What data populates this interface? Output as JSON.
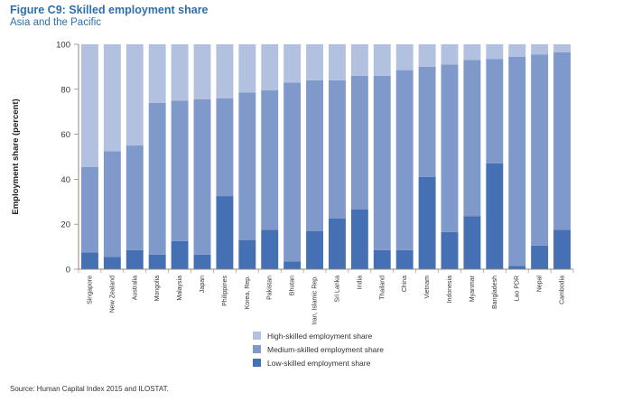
{
  "title": "Figure C9: Skilled employment share",
  "subtitle": "Asia and the Pacific",
  "source": "Source: Human Capital Index 2015 and ILOSTAT.",
  "colors": {
    "low": "#4570b3",
    "medium": "#7f99cb",
    "high": "#b3c1e0",
    "axis": "#8a8a8a"
  },
  "chart_data": {
    "type": "bar",
    "stacked": true,
    "title": "Figure C9: Skilled employment share",
    "subtitle": "Asia and the Pacific",
    "xlabel": "",
    "ylabel": "Employment share (percent)",
    "ylim": [
      0,
      100
    ],
    "yticks": [
      0,
      20,
      40,
      60,
      80,
      100
    ],
    "legend_position": "bottom-center",
    "categories": [
      "Singapore",
      "New Zealand",
      "Australia",
      "Mongolia",
      "Malaysia",
      "Japan",
      "Philippines",
      "Korea, Rep.",
      "Pakistan",
      "Bhutan",
      "Iran, Islamic Rep.",
      "Sri Lanka",
      "India",
      "Thailand",
      "China",
      "Vietnam",
      "Indonesia",
      "Myanmar",
      "Bangladesh",
      "Lao PDR",
      "Nepal",
      "Cambodia"
    ],
    "series": [
      {
        "name": "Low-skilled employment share",
        "values": [
          7.5,
          5.5,
          8.5,
          6.5,
          12.5,
          6.5,
          32.5,
          13,
          17.5,
          3.5,
          17,
          22.5,
          26.5,
          8.5,
          8.5,
          41,
          16.5,
          23.5,
          47,
          1.5,
          10.5,
          17.5
        ]
      },
      {
        "name": "Medium-skilled employment share",
        "values": [
          38,
          47,
          46.5,
          67.5,
          62.5,
          69,
          43.5,
          65.5,
          62,
          79.5,
          67,
          61.5,
          59.5,
          77.5,
          80,
          49,
          74.5,
          69.5,
          46.5,
          93,
          85,
          79
        ]
      },
      {
        "name": "High-skilled employment share",
        "values": [
          54.5,
          47.5,
          45,
          26,
          25,
          24.5,
          24,
          21.5,
          20.5,
          17,
          16,
          16,
          14,
          14,
          11.5,
          10,
          9,
          7,
          6.5,
          5.5,
          4.5,
          3.5
        ]
      }
    ]
  }
}
